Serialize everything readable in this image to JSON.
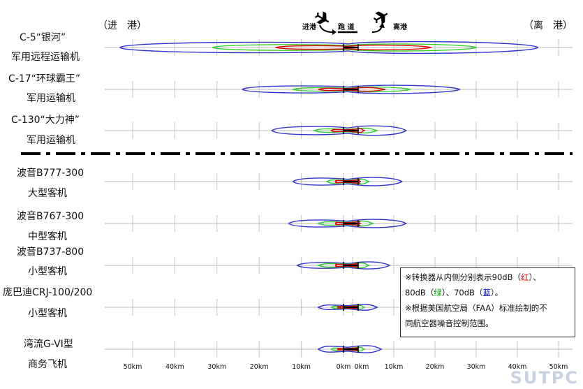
{
  "header": {
    "arrival": "（进　港）",
    "departure": "（离　港）",
    "legend_arrive": "进港",
    "legend_runway": "跑 道",
    "legend_depart": "离港"
  },
  "aircraft": [
    {
      "line1": "C-5“银河”",
      "line2": "军用远程运输机"
    },
    {
      "line1": "C-17“环球霸王”",
      "line2": "军用运输机"
    },
    {
      "line1": "C-130“大力神”",
      "line2": "军用运输机"
    },
    {
      "line1": "波音B777-300",
      "line2": "大型客机"
    },
    {
      "line1": "波音B767-300",
      "line2": "中型客机"
    },
    {
      "line1": "波音B737-800",
      "line2": "小型客机"
    },
    {
      "line1": "庞巴迪CRJ-100/200",
      "line2": "小型客机"
    },
    {
      "line1": "湾流G-VI型",
      "line2": "商务飞机"
    }
  ],
  "axis": {
    "left_ticks": [
      "50km",
      "40km",
      "30km",
      "20km",
      "10km",
      "0km"
    ],
    "right_ticks": [
      "0km",
      "10km",
      "20km",
      "30km",
      "40km",
      "50km"
    ]
  },
  "note": {
    "l1_pre": "※转换器从内侧分别表示90dB（",
    "l1_red": "红",
    "l1_post": "）、",
    "l2_pre": "80dB（",
    "l2_green": "绿",
    "l2_mid": "）、70dB（",
    "l2_blue": "蓝",
    "l2_post": "）。",
    "l3": "※根据美国航空局（FAA）标准绘制的不",
    "l4": "同航空器噪音控制范围。"
  },
  "watermark": "SUTPC",
  "colors": {
    "red": "#dd0000",
    "green": "#33cc33",
    "blue": "#3333cc",
    "runway": "#000000"
  },
  "chart_data": {
    "type": "diagram",
    "units": "km",
    "contour_levels_db": [
      90,
      80,
      70
    ],
    "contours": [
      {
        "aircraft": "C-5",
        "arrival_km": {
          "70": 53,
          "80": 31,
          "90": 16
        },
        "departure_km": {
          "70": 45,
          "80": 30,
          "90": 19
        }
      },
      {
        "aircraft": "C-17",
        "arrival_km": {
          "70": 24,
          "80": 12,
          "90": 6
        },
        "departure_km": {
          "70": 26,
          "80": 14,
          "90": 8
        }
      },
      {
        "aircraft": "C-130",
        "arrival_km": {
          "70": 17,
          "80": 7,
          "90": 3
        },
        "departure_km": {
          "70": 13,
          "80": 6,
          "90": 3
        }
      },
      {
        "aircraft": "B777-300",
        "arrival_km": {
          "70": 12,
          "80": 4,
          "90": 2
        },
        "departure_km": {
          "70": 12,
          "80": 4,
          "90": 2
        }
      },
      {
        "aircraft": "B767-300",
        "arrival_km": {
          "70": 13,
          "80": 6,
          "90": 2
        },
        "departure_km": {
          "70": 13,
          "80": 5,
          "90": 2
        }
      },
      {
        "aircraft": "B737-800",
        "arrival_km": {
          "70": 11,
          "80": 6,
          "90": 2
        },
        "departure_km": {
          "70": 9,
          "80": 4,
          "90": 1
        }
      },
      {
        "aircraft": "CRJ-100/200",
        "arrival_km": {
          "70": 6,
          "80": 3,
          "90": 1
        },
        "departure_km": {
          "70": 6,
          "80": 3,
          "90": 1
        }
      },
      {
        "aircraft": "G-VI",
        "arrival_km": {
          "70": 6,
          "80": 3,
          "90": 1
        },
        "departure_km": {
          "70": 7,
          "80": 3,
          "90": 1
        }
      }
    ]
  }
}
